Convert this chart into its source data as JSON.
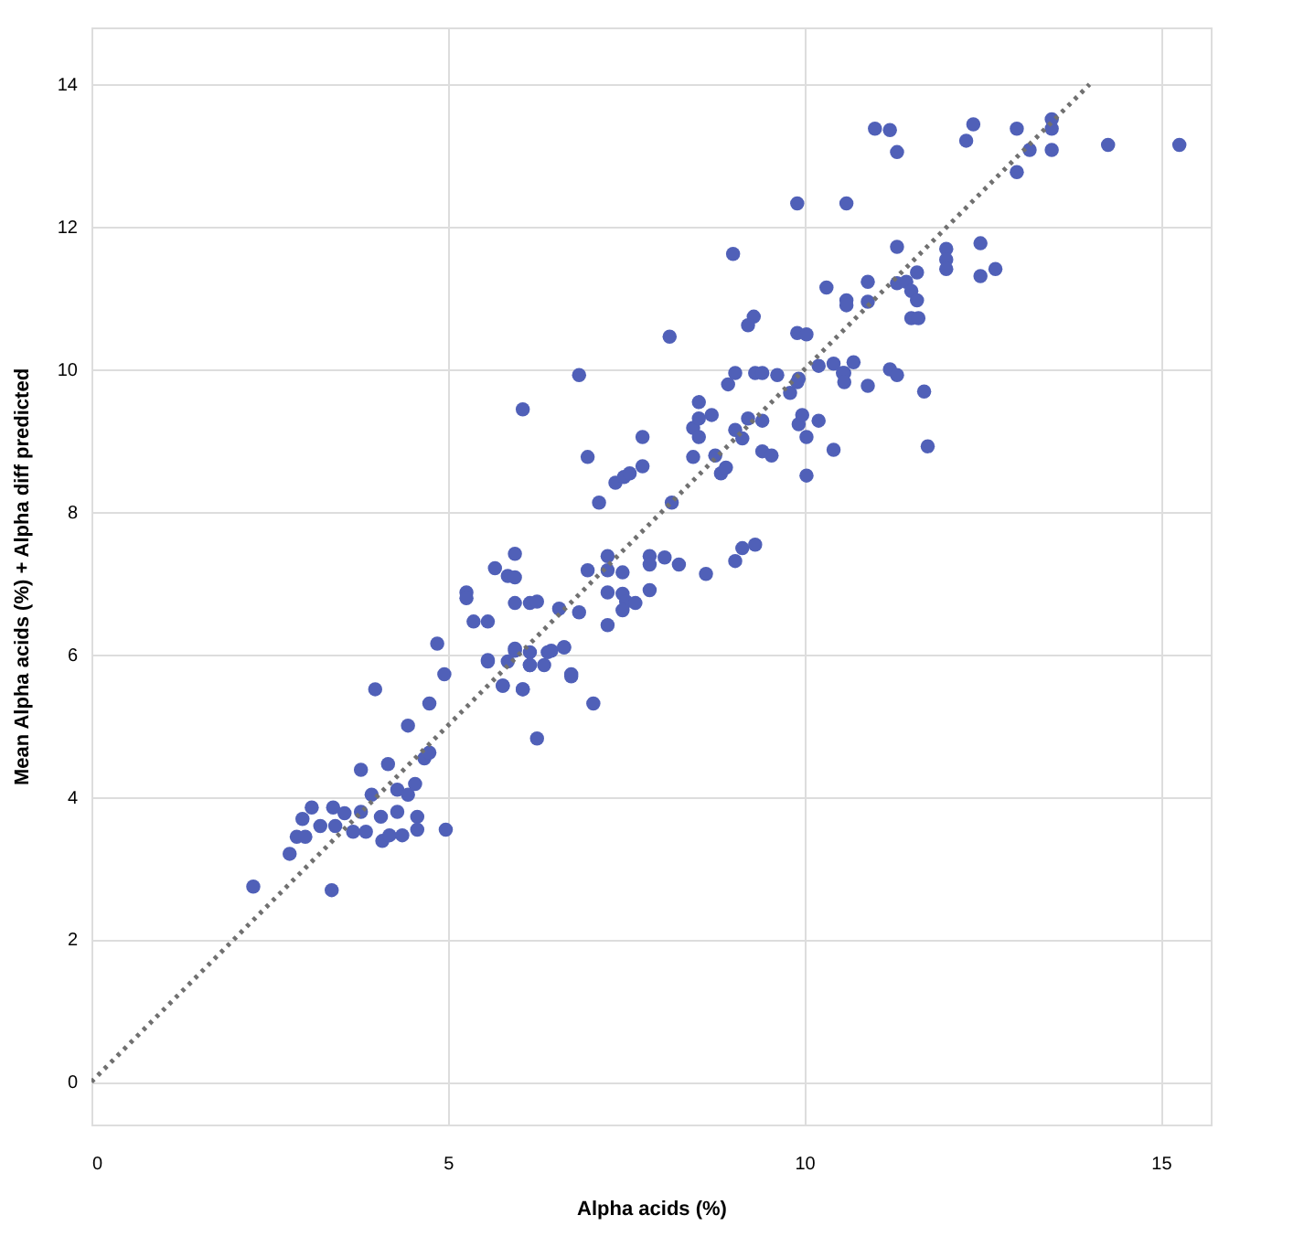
{
  "chart_data": {
    "type": "scatter",
    "xlabel": "Alpha acids (%)",
    "ylabel": "Mean Alpha acids (%) + Alpha diff predicted",
    "xlim": [
      0,
      15.7
    ],
    "ylim": [
      -0.6,
      14.8
    ],
    "xticks": [
      0,
      5,
      10,
      15
    ],
    "yticks": [
      0,
      2,
      4,
      6,
      8,
      10,
      12,
      14
    ],
    "grid": true,
    "legend": false,
    "marker": "circle",
    "series": [
      {
        "color": "#5060b8",
        "x": [
          2.27,
          2.78,
          3.37,
          2.88,
          3.0,
          2.96,
          3.09,
          3.21,
          3.39,
          3.42,
          3.55,
          3.67,
          3.78,
          3.85,
          3.98,
          3.78,
          3.93,
          4.06,
          4.08,
          4.16,
          4.18,
          4.29,
          4.29,
          4.36,
          4.44,
          4.44,
          4.54,
          4.57,
          4.57,
          4.67,
          4.74,
          4.74,
          4.85,
          4.95,
          4.97,
          5.56,
          5.77,
          5.84,
          5.94,
          6.05,
          6.15,
          6.25,
          6.35,
          6.45,
          6.63,
          6.73,
          5.26,
          5.26,
          5.36,
          5.56,
          5.66,
          5.84,
          5.94,
          5.94,
          5.94,
          6.15,
          6.25,
          6.05,
          5.56,
          5.77,
          6.05,
          5.94,
          6.15,
          6.15,
          6.4,
          6.56,
          6.63,
          6.73,
          6.84,
          7.04,
          6.84,
          6.96,
          6.96,
          7.12,
          7.24,
          7.24,
          7.24,
          7.24,
          7.35,
          7.47,
          7.55,
          7.45,
          7.45,
          7.5,
          7.45,
          7.63,
          7.73,
          7.73,
          7.83,
          7.83,
          7.83,
          8.04,
          8.24,
          8.14,
          8.44,
          8.44,
          8.52,
          8.52,
          8.7,
          8.52,
          8.75,
          8.62,
          8.83,
          8.9,
          8.93,
          9.03,
          9.03,
          9.13,
          9.31,
          9.03,
          9.13,
          9.21,
          9.31,
          9.41,
          9.41,
          9.41,
          9.54,
          9.62,
          9.8,
          9.92,
          9.92,
          10.03,
          10.03,
          10.2,
          10.2,
          10.41,
          10.56,
          10.89,
          11.2,
          11.68,
          11.73,
          10.99,
          11.2,
          11.3,
          12.27,
          12.37,
          12.98,
          12.98,
          13.16,
          13.47,
          13.47,
          13.47,
          14.26,
          15.26,
          9.9,
          10.59,
          9.0,
          11.3,
          11.99,
          11.99,
          11.99,
          12.47,
          12.47,
          12.68,
          10.31,
          10.59,
          10.59,
          10.89,
          10.89,
          11.3,
          11.43,
          11.58,
          11.5,
          11.58,
          11.5,
          11.6,
          9.29,
          9.21,
          8.11,
          9.9,
          10.03,
          10.41,
          10.54,
          10.69,
          10.56,
          11.3,
          9.9,
          9.97
        ],
        "values": [
          2.74,
          3.2,
          2.69,
          3.44,
          3.44,
          3.69,
          3.85,
          3.59,
          3.85,
          3.59,
          3.77,
          3.51,
          3.79,
          3.51,
          5.51,
          4.38,
          4.03,
          3.72,
          3.38,
          4.46,
          3.46,
          4.1,
          3.79,
          3.46,
          5.0,
          4.03,
          4.18,
          3.72,
          3.54,
          4.54,
          4.62,
          5.31,
          6.15,
          5.72,
          3.54,
          5.9,
          5.56,
          5.9,
          6.08,
          5.51,
          5.85,
          4.82,
          5.85,
          6.05,
          6.1,
          5.69,
          6.87,
          6.79,
          6.46,
          6.46,
          7.21,
          7.1,
          7.08,
          7.41,
          6.72,
          6.72,
          6.74,
          9.44,
          5.92,
          5.56,
          5.51,
          6.05,
          6.03,
          5.85,
          6.03,
          6.64,
          6.1,
          5.72,
          6.59,
          5.31,
          9.92,
          7.18,
          8.77,
          8.13,
          7.38,
          7.18,
          6.87,
          6.41,
          8.41,
          8.49,
          8.54,
          7.15,
          6.85,
          6.74,
          6.62,
          6.72,
          9.05,
          8.64,
          7.38,
          7.26,
          6.9,
          7.36,
          7.26,
          8.13,
          9.18,
          8.77,
          9.54,
          9.31,
          9.36,
          9.05,
          8.79,
          7.13,
          8.54,
          8.62,
          9.79,
          9.95,
          7.31,
          7.49,
          7.54,
          9.15,
          9.03,
          9.31,
          9.95,
          9.95,
          9.28,
          8.85,
          8.79,
          9.92,
          9.67,
          9.87,
          9.23,
          9.05,
          8.51,
          9.28,
          10.05,
          8.87,
          9.95,
          9.77,
          10.0,
          9.69,
          8.92,
          13.38,
          13.36,
          13.05,
          13.21,
          13.44,
          13.38,
          12.77,
          13.08,
          13.51,
          13.38,
          13.08,
          13.15,
          13.15,
          12.33,
          12.33,
          11.62,
          11.72,
          11.69,
          11.54,
          11.41,
          11.77,
          11.31,
          11.41,
          11.15,
          10.97,
          10.9,
          11.23,
          10.95,
          11.21,
          11.23,
          11.36,
          11.1,
          10.97,
          10.72,
          10.72,
          10.74,
          10.62,
          10.46,
          10.51,
          10.49,
          10.08,
          9.95,
          10.1,
          9.82,
          9.92,
          9.82,
          9.36
        ]
      },
      {
        "type": "line",
        "color": "#707070",
        "line_style": "dotted",
        "marker": "none",
        "x": [
          0,
          14
        ],
        "values": [
          0,
          14
        ]
      }
    ]
  }
}
